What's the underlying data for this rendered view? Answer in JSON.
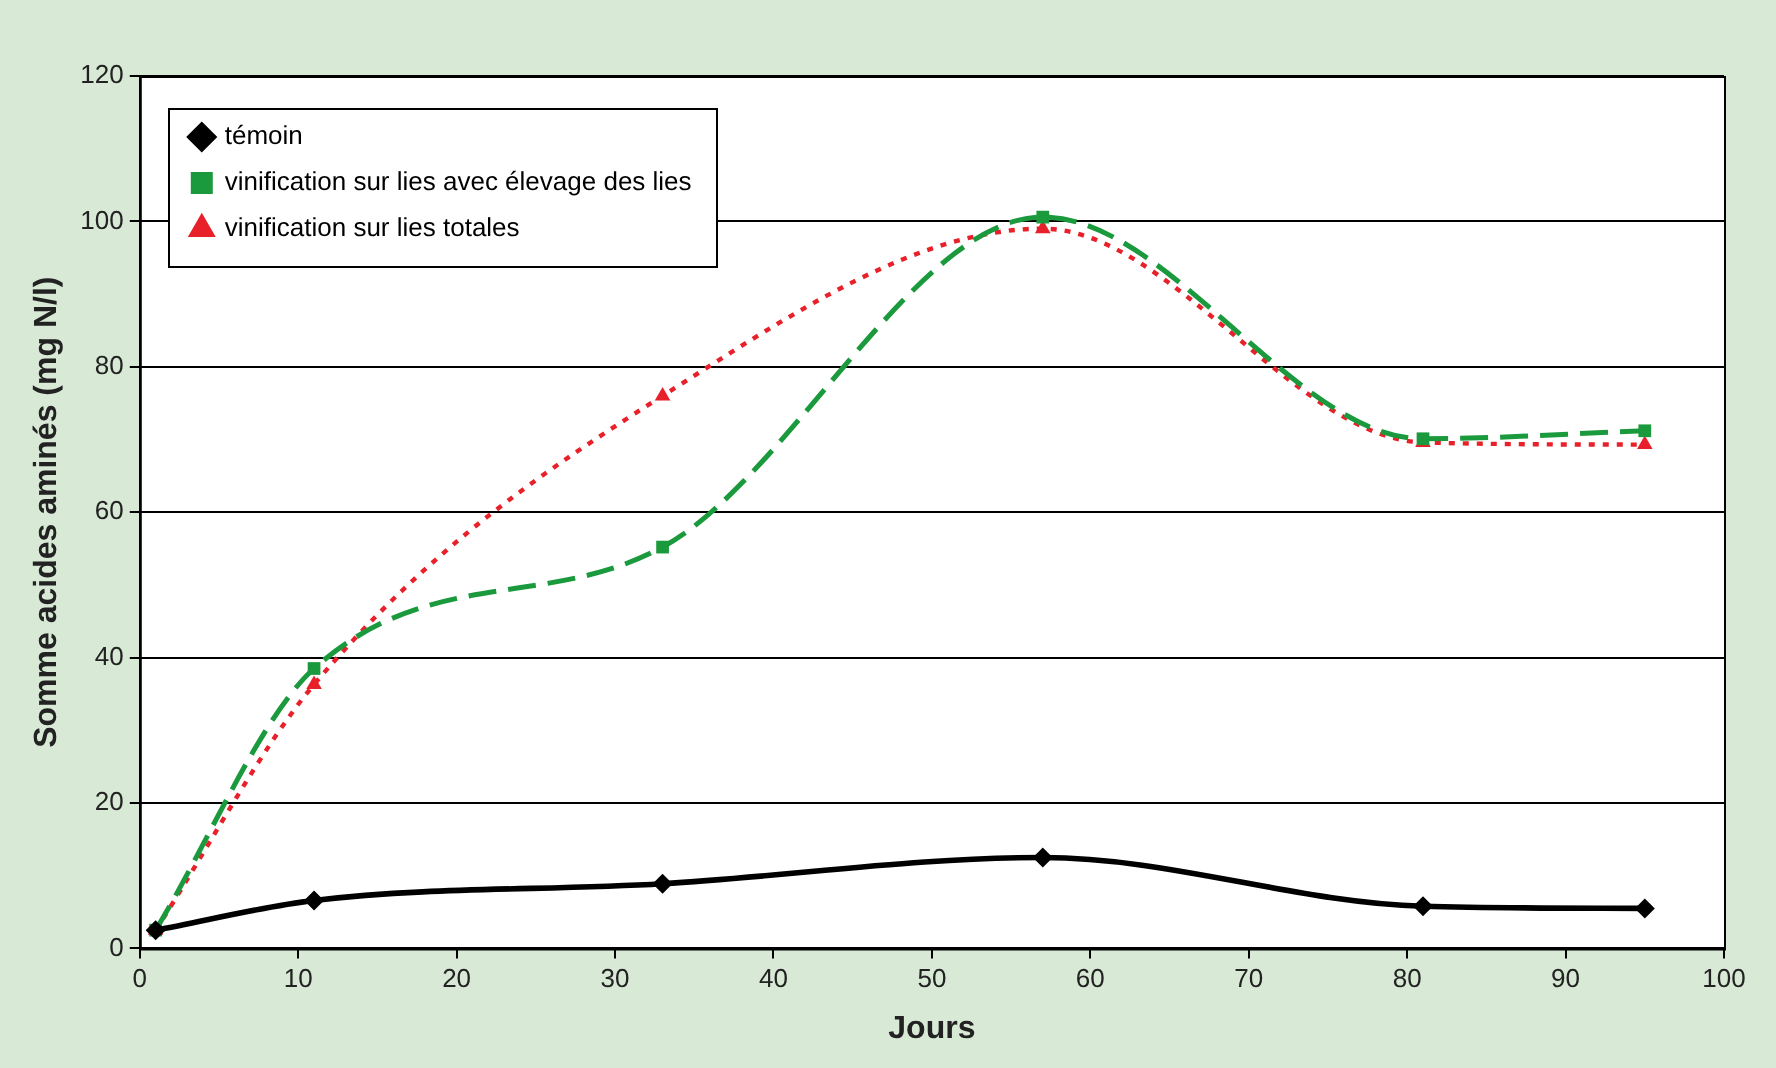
{
  "chart_data": {
    "type": "line",
    "xlabel": "Jours",
    "ylabel": "Somme acides aminés (mg N/l)",
    "xlim": [
      0,
      100
    ],
    "xticks": [
      0,
      10,
      20,
      30,
      40,
      50,
      60,
      70,
      80,
      90,
      100
    ],
    "ylim": [
      0,
      120
    ],
    "yticks": [
      0,
      20,
      40,
      60,
      80,
      100,
      120
    ],
    "grid": "y",
    "legend": "top left",
    "series": [
      {
        "name": "témoin",
        "color": "#000000",
        "marker": "diamond",
        "line_style": "solid",
        "x": [
          1,
          11,
          33,
          57,
          81,
          95
        ],
        "values": [
          2.5,
          6.6,
          8.9,
          12.5,
          5.8,
          5.5
        ]
      },
      {
        "name": "vinification sur lies avec élevage des lies",
        "color": "#1a9a3c",
        "marker": "square",
        "line_style": "dashed",
        "x": [
          1,
          11,
          33,
          57,
          81,
          95
        ],
        "values": [
          2.5,
          38.5,
          55.2,
          100.6,
          70.1,
          71.2
        ]
      },
      {
        "name": "vinification sur lies totales",
        "color": "#e8202a",
        "marker": "triangle",
        "line_style": "dotted",
        "x": [
          1,
          11,
          33,
          57,
          81,
          95
        ],
        "values": [
          2.5,
          36.3,
          76,
          99,
          69.6,
          69.3
        ]
      }
    ]
  }
}
